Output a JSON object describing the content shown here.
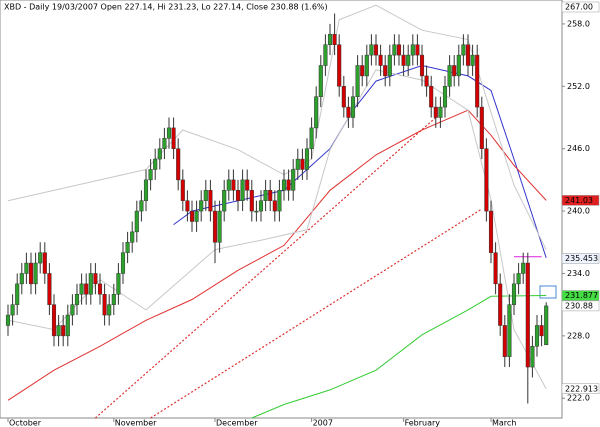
{
  "chart_data": {
    "type": "candlestick",
    "title": "XBD - Daily 19/03/2007 Open 227.14, Hi 231.23, Lo 227.14, Close 230.88 (1.6%)",
    "categories": [
      "October",
      null,
      null,
      null,
      null,
      null,
      null,
      null,
      null,
      null,
      null,
      null,
      null,
      null,
      null,
      null,
      null,
      null,
      null,
      null,
      null,
      null,
      null,
      "November",
      null,
      null,
      null,
      null,
      null,
      null,
      null,
      null,
      null,
      null,
      null,
      null,
      null,
      null,
      null,
      null,
      null,
      null,
      null,
      null,
      null,
      "December",
      null,
      null,
      null,
      null,
      null,
      null,
      null,
      null,
      null,
      null,
      null,
      null,
      null,
      null,
      null,
      null,
      null,
      null,
      null,
      null,
      "2007",
      null,
      null,
      null,
      null,
      null,
      null,
      null,
      null,
      null,
      null,
      null,
      null,
      null,
      null,
      null,
      null,
      null,
      null,
      null,
      "February",
      null,
      null,
      null,
      null,
      null,
      null,
      null,
      null,
      null,
      null,
      null,
      null,
      null,
      null,
      null,
      null,
      null,
      null,
      "March",
      null,
      null,
      null,
      null,
      null,
      null,
      null,
      null,
      null,
      null,
      null,
      null
    ],
    "open": [
      229,
      230,
      231,
      233,
      234,
      235,
      233,
      235,
      236,
      234,
      231,
      228,
      229,
      228,
      230,
      231,
      232,
      233,
      232,
      234,
      233,
      232,
      230,
      231,
      232,
      234,
      236,
      237,
      238,
      240,
      241,
      243,
      244,
      245,
      246,
      247,
      248,
      246,
      243,
      241,
      240,
      239,
      240,
      241,
      242,
      240,
      237,
      240,
      242,
      243,
      242,
      241,
      243,
      242,
      240,
      240,
      241,
      242,
      241,
      240,
      242,
      243,
      242,
      244,
      245,
      244,
      246,
      248,
      251,
      254,
      256,
      257,
      256,
      252,
      250,
      249,
      251,
      254,
      253,
      255,
      256,
      255,
      254,
      253,
      255,
      256,
      255,
      254,
      255,
      256,
      255,
      253,
      252,
      250,
      249,
      250,
      252,
      254,
      253,
      255,
      256,
      254,
      255,
      250,
      246,
      240,
      236,
      233,
      229,
      226,
      231,
      233,
      234,
      235,
      225,
      227,
      229,
      227.14
    ],
    "high": [
      231,
      232,
      234,
      235,
      236,
      236,
      236,
      237,
      237,
      235,
      232,
      230,
      230,
      231,
      232,
      233,
      234,
      234,
      235,
      235,
      234,
      233,
      232,
      233,
      235,
      237,
      238,
      239,
      241,
      242,
      244,
      245,
      246,
      247,
      248,
      249,
      249,
      247,
      244,
      242,
      241,
      241,
      242,
      243,
      243,
      241,
      241,
      243,
      244,
      244,
      243,
      244,
      244,
      243,
      241,
      242,
      243,
      243,
      242,
      243,
      244,
      244,
      245,
      246,
      246,
      247,
      249,
      252,
      255,
      257,
      258,
      259,
      257,
      253,
      251,
      252,
      255,
      255,
      256,
      257,
      257,
      256,
      255,
      256,
      257,
      257,
      256,
      256,
      257,
      257,
      256,
      254,
      253,
      251,
      251,
      253,
      255,
      255,
      256,
      257,
      257,
      256,
      256,
      251,
      247,
      241,
      237,
      234,
      230,
      232,
      234,
      235,
      236,
      236,
      228,
      230,
      230,
      231.23
    ],
    "low": [
      228,
      229,
      230,
      232,
      233,
      232,
      232,
      234,
      233,
      230,
      227,
      227,
      227,
      227,
      229,
      230,
      231,
      231,
      231,
      232,
      231,
      229,
      229,
      230,
      231,
      233,
      235,
      236,
      237,
      239,
      240,
      242,
      243,
      244,
      245,
      246,
      245,
      242,
      240,
      239,
      238,
      238,
      239,
      240,
      239,
      235,
      236,
      239,
      241,
      241,
      240,
      240,
      241,
      239,
      239,
      239,
      240,
      240,
      239,
      239,
      241,
      241,
      241,
      243,
      243,
      243,
      245,
      247,
      250,
      253,
      255,
      255,
      251,
      249,
      248,
      248,
      250,
      252,
      252,
      254,
      254,
      253,
      252,
      252,
      254,
      254,
      253,
      253,
      254,
      254,
      252,
      251,
      249,
      248,
      248,
      249,
      251,
      252,
      252,
      254,
      253,
      253,
      249,
      245,
      239,
      235,
      232,
      228,
      225,
      225,
      230,
      232,
      233,
      221.5,
      224,
      226,
      227,
      227.14
    ],
    "close": [
      230,
      231,
      233,
      234,
      235,
      233,
      235,
      236,
      234,
      231,
      228,
      229,
      228,
      230,
      231,
      232,
      233,
      232,
      234,
      233,
      232,
      230,
      231,
      232,
      234,
      236,
      237,
      238,
      240,
      241,
      243,
      244,
      245,
      246,
      247,
      248,
      246,
      243,
      241,
      240,
      239,
      240,
      241,
      242,
      240,
      237,
      240,
      242,
      243,
      242,
      241,
      243,
      242,
      240,
      240,
      241,
      242,
      241,
      240,
      242,
      243,
      242,
      244,
      245,
      244,
      246,
      248,
      251,
      254,
      256,
      257,
      256,
      252,
      250,
      249,
      251,
      254,
      253,
      255,
      256,
      255,
      254,
      253,
      255,
      256,
      255,
      254,
      255,
      256,
      255,
      253,
      252,
      250,
      249,
      250,
      252,
      254,
      253,
      255,
      256,
      254,
      255,
      250,
      246,
      240,
      236,
      233,
      229,
      226,
      231,
      233,
      234,
      235,
      225,
      227,
      229,
      228,
      230.88
    ],
    "up_color": "#2ea02e",
    "down_color": "#d40000",
    "ylim": [
      220.1,
      260.3
    ],
    "yticks": [
      {
        "value": 222,
        "label": "222.0"
      },
      {
        "value": 228,
        "label": "228.0"
      },
      {
        "value": 234,
        "label": "234.0"
      },
      {
        "value": 240,
        "label": "240.0"
      },
      {
        "value": 246,
        "label": "246.0"
      },
      {
        "value": 252,
        "label": "252.0"
      },
      {
        "value": 258,
        "label": "258.0"
      }
    ],
    "overlays": [
      {
        "color": "#3333cc",
        "dashed": false,
        "x": [
          36,
          40,
          50,
          60,
          70,
          75,
          80,
          90,
          100,
          105,
          110,
          117
        ],
        "values": [
          238.7,
          240,
          241,
          242,
          246,
          249.7,
          252.5,
          254,
          253,
          251.6,
          245,
          235.5
        ]
      },
      {
        "color": "#e03030",
        "dashed": false,
        "x": [
          0,
          10,
          20,
          30,
          40,
          50,
          60,
          70,
          80,
          90,
          100,
          105,
          110,
          117
        ],
        "values": [
          221.8,
          224.7,
          227,
          229.5,
          231.5,
          234.3,
          236.7,
          242,
          245.4,
          247.8,
          249.7,
          247.3,
          244.4,
          241.03
        ]
      },
      {
        "color": "#33cc33",
        "dashed": false,
        "x": [
          53,
          60,
          70,
          80,
          90,
          100,
          105,
          117
        ],
        "values": [
          220.1,
          221.4,
          222.8,
          224.7,
          228.1,
          230.5,
          231.8,
          231.88
        ]
      },
      {
        "color": "#c8c8c8",
        "dashed": false,
        "x": [
          0,
          20,
          30,
          38,
          50,
          60,
          66,
          72,
          80,
          90,
          100,
          110,
          117
        ],
        "values": [
          241,
          243,
          244,
          247.8,
          245.9,
          243.5,
          245,
          258.4,
          259.8,
          257.4,
          256.5,
          242.5,
          236.3
        ]
      },
      {
        "color": "#c8c8c8",
        "dashed": false,
        "x": [
          0,
          10,
          20,
          30,
          45,
          55,
          65,
          70,
          80,
          90,
          100,
          105,
          110,
          117
        ],
        "values": [
          229.5,
          228.6,
          233.4,
          230.5,
          236.3,
          237.2,
          238.2,
          245.9,
          253.6,
          252.6,
          249.7,
          241.1,
          228.6,
          222.9
        ]
      },
      {
        "color": "#e03030",
        "dashed": true,
        "x": [
          19,
          93
        ],
        "values": [
          220.1,
          249
        ]
      },
      {
        "color": "#e03030",
        "dashed": true,
        "x": [
          31,
          103
        ],
        "values": [
          220.1,
          240.2
        ]
      },
      {
        "color": "#dd22dd",
        "dashed": false,
        "x": [
          110,
          116
        ],
        "values": [
          235.6,
          235.6
        ]
      }
    ],
    "annotations": [
      {
        "label": "267.00",
        "color": "#ffffff"
      },
      {
        "value": 241.03,
        "label": "241.03",
        "color": "#e02020"
      },
      {
        "value": 235.453,
        "label": "235.453",
        "color": "#eef4ff"
      },
      {
        "value": 231.877,
        "label": "231.877",
        "color": "#44dd44"
      },
      {
        "value": 230.88,
        "label": "230.88",
        "color": "#ffffff"
      },
      {
        "value": 222.913,
        "label": "222.913",
        "color": "#ffffff"
      }
    ]
  }
}
